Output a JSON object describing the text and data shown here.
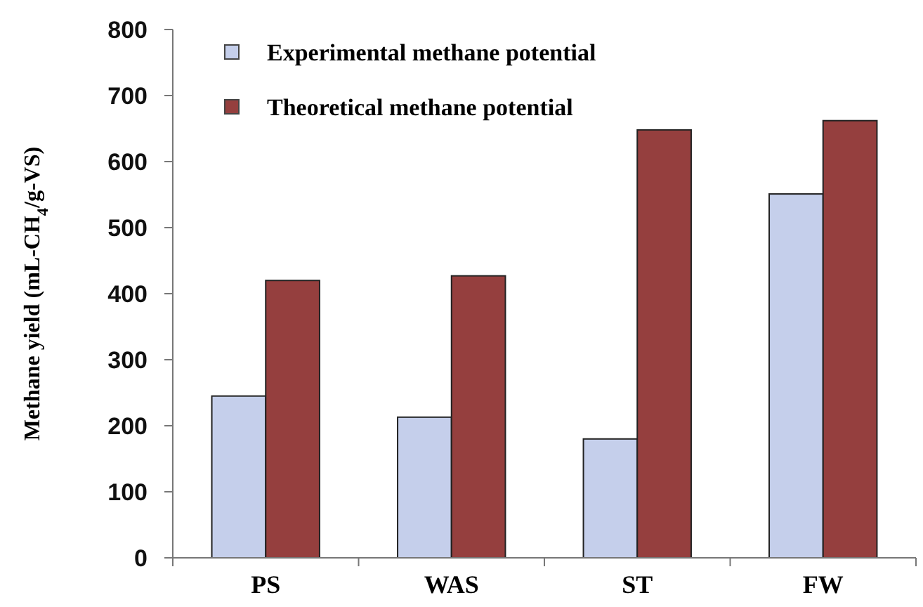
{
  "chart_data": {
    "type": "bar",
    "ylabel": "Methane yield (mL-CH$_{4}$/g-VS)",
    "categories": [
      "PS",
      "WAS",
      "ST",
      "FW"
    ],
    "series": [
      {
        "name": "Experimental methane potential",
        "color": "#c5cfeb",
        "values": [
          245,
          213,
          180,
          551
        ]
      },
      {
        "name": "Theoretical methane potential",
        "color": "#953f3e",
        "values": [
          420,
          427,
          648,
          662
        ]
      }
    ],
    "ylim": [
      0,
      800
    ],
    "yticks": [
      0,
      100,
      200,
      300,
      400,
      500,
      600,
      700,
      800
    ],
    "grid": false,
    "legend": "top left"
  }
}
